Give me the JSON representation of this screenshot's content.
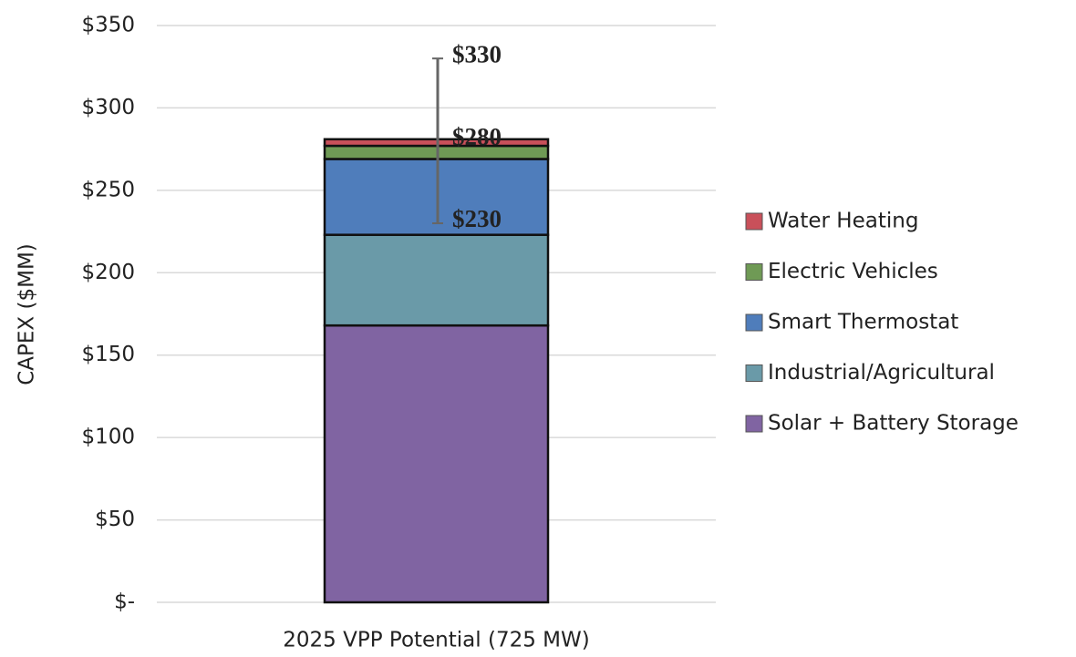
{
  "chart_data": {
    "type": "stacked-bar",
    "y_label": "CAPEX  ($MM)",
    "categories": [
      "2025 VPP Potential (725 MW)"
    ],
    "series": [
      {
        "name": "Solar + Battery Storage",
        "color": "#8064a2",
        "values": [
          168
        ]
      },
      {
        "name": "Industrial/Agricultural",
        "color": "#6a9aa8",
        "values": [
          55
        ]
      },
      {
        "name": "Smart Thermostat",
        "color": "#4f7dbb",
        "values": [
          46
        ]
      },
      {
        "name": "Electric Vehicles",
        "color": "#6f9a55",
        "values": [
          8
        ]
      },
      {
        "name": "Water Heating",
        "color": "#c9505a",
        "values": [
          4
        ]
      }
    ],
    "error_bar": {
      "values": [
        230,
        280,
        330
      ],
      "value_labels": [
        "$230",
        "$280",
        "$330"
      ]
    },
    "ylim": [
      0,
      350
    ],
    "yticks": [
      {
        "value": 0,
        "label": "$-"
      },
      {
        "value": 50,
        "label": "$50"
      },
      {
        "value": 100,
        "label": "$100"
      },
      {
        "value": 150,
        "label": "$150"
      },
      {
        "value": 200,
        "label": "$200"
      },
      {
        "value": 250,
        "label": "$250"
      },
      {
        "value": 300,
        "label": "$300"
      },
      {
        "value": 350,
        "label": "$350"
      }
    ],
    "grid": true,
    "legend": "right"
  }
}
